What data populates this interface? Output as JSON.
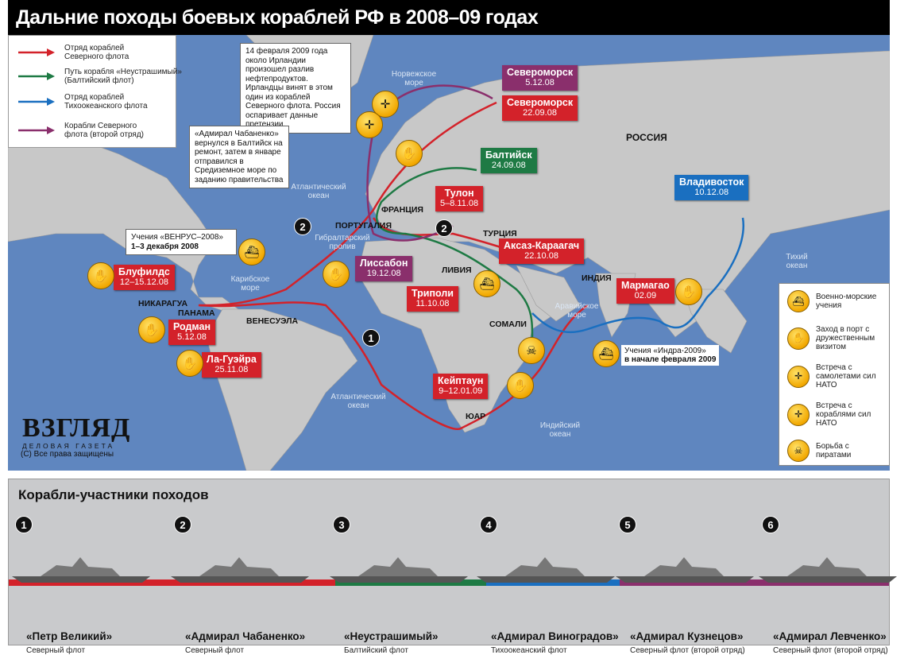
{
  "title": "Дальние походы боевых кораблей РФ в 2008–09 годах",
  "colors": {
    "northern": "#d3222a",
    "baltic": "#1e7a44",
    "pacific": "#1a6fc0",
    "northern2": "#8a2f6c",
    "sea": "#5f86bf",
    "land": "#c8c8c8"
  },
  "legend": [
    {
      "label": "Отряд кораблей Северного флота",
      "color": "#d3222a"
    },
    {
      "label": "Путь корабля «Неустрашимый» (Балтийский флот)",
      "color": "#1e7a44"
    },
    {
      "label": "Отряд кораблей Тихоокеанского флота",
      "color": "#1a6fc0"
    },
    {
      "label": "Корабли Северного флота (второй отряд)",
      "color": "#8a2f6c"
    }
  ],
  "notes": {
    "ireland": "14 февраля 2009 года около Ирландии произошел разлив нефтепродуктов. Ирландцы винят в этом один из кораблей Северного флота. Россия оспаривает данные претензии.",
    "chabanenko": "«Адмирал Чабаненко» вернулся в Балтийск на ремонт, затем в январе отправился в Средиземное море по заданию правительства",
    "venrus_title": "Учения «ВЕНРУС–2008»",
    "venrus_date": "1–3 декабря 2008",
    "indra_title": "Учения «Индра-2009»",
    "indra_date": "в начале февраля 2009"
  },
  "ports": [
    {
      "name": "Североморск",
      "date": "5.12.08",
      "fleet": "purple"
    },
    {
      "name": "Североморск",
      "date": "22.09.08",
      "fleet": "red"
    },
    {
      "name": "Балтийск",
      "date": "24.09.08",
      "fleet": "green"
    },
    {
      "name": "Тулон",
      "date": "5–8.11.08",
      "fleet": "red"
    },
    {
      "name": "Акcаз-Караагач",
      "date": "22.10.08",
      "fleet": "red"
    },
    {
      "name": "Лиссабон",
      "date": "19.12.08",
      "fleet": "purple"
    },
    {
      "name": "Триполи",
      "date": "11.10.08",
      "fleet": "red"
    },
    {
      "name": "Владивосток",
      "date": "10.12.08",
      "fleet": "blue"
    },
    {
      "name": "Мармагао",
      "date": "02.09",
      "fleet": "red"
    },
    {
      "name": "Блуфилдс",
      "date": "12–15.12.08",
      "fleet": "red"
    },
    {
      "name": "Родман",
      "date": "5.12.08",
      "fleet": "red"
    },
    {
      "name": "Ла-Гуэйра",
      "date": "25.11.08",
      "fleet": "red"
    },
    {
      "name": "Кейптаун",
      "date": "9–12.01.09",
      "fleet": "red"
    }
  ],
  "geo": {
    "norwegian_sea": "Норвежское море",
    "russia": "РОССИЯ",
    "atlantic_n": "Атлантический океан",
    "atlantic_s": "Атлантический океан",
    "france": "ФРАНЦИЯ",
    "portugal": "ПОРТУГАЛИЯ",
    "gibraltar": "Гибралтарский пролив",
    "turkey": "ТУРЦИЯ",
    "libya": "ЛИВИЯ",
    "caribbean": "Карибское море",
    "nicaragua": "НИКАРАГУА",
    "panama": "ПАНАМА",
    "venezuela": "ВЕНЕСУЭЛА",
    "somalia": "СОМАЛИ",
    "arabian_sea": "Аравийское море",
    "india": "ИНДИЯ",
    "pacific": "Тихий океан",
    "indian": "Индийский океан",
    "rsa": "ЮАР"
  },
  "markers": [
    "1",
    "2",
    "2"
  ],
  "legend2": [
    {
      "icon": "exercise-icon",
      "label": "Военно-морские учения"
    },
    {
      "icon": "handshake-icon",
      "label": "Заход в порт с дружественным визитом"
    },
    {
      "icon": "nato-aircraft-icon",
      "label": "Встреча с самолетами сил НАТО"
    },
    {
      "icon": "nato-ships-icon",
      "label": "Встреча с кораблями сил НАТО"
    },
    {
      "icon": "pirate-icon",
      "label": "Борьба с пиратами"
    }
  ],
  "logo": {
    "word": "ВЗГЛЯД",
    "sub": "ДЕЛОВАЯ ГАЗЕТА"
  },
  "copyright": "(С) Все права защищены",
  "ships_title": "Корабли-участники походов",
  "ships": [
    {
      "num": "1",
      "name": "«Петр Великий»",
      "fleet": "Северный флот",
      "color": "#d3222a"
    },
    {
      "num": "2",
      "name": "«Адмирал Чабаненко»",
      "fleet": "Северный флот",
      "color": "#d3222a"
    },
    {
      "num": "3",
      "name": "«Неустрашимый»",
      "fleet": "Балтийский флот",
      "color": "#1e7a44"
    },
    {
      "num": "4",
      "name": "«Адмирал Виноградов»",
      "fleet": "Тихоокеанский флот",
      "color": "#1a6fc0"
    },
    {
      "num": "5",
      "name": "«Адмирал Кузнецов»",
      "fleet": "Северный флот (второй отряд)",
      "color": "#8a2f6c"
    },
    {
      "num": "6",
      "name": "«Адмирал Левченко»",
      "fleet": "Северный флот (второй отряд)",
      "color": "#8a2f6c"
    }
  ]
}
